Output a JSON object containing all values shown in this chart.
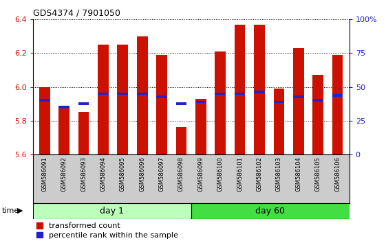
{
  "title": "GDS4374 / 7901050",
  "samples": [
    "GSM586091",
    "GSM586092",
    "GSM586093",
    "GSM586094",
    "GSM586095",
    "GSM586096",
    "GSM586097",
    "GSM586098",
    "GSM586099",
    "GSM586100",
    "GSM586101",
    "GSM586102",
    "GSM586103",
    "GSM586104",
    "GSM586105",
    "GSM586106"
  ],
  "red_values": [
    6.0,
    5.88,
    5.85,
    6.25,
    6.25,
    6.3,
    6.19,
    5.76,
    5.93,
    6.21,
    6.37,
    6.37,
    5.99,
    6.23,
    6.07,
    6.19
  ],
  "blue_values": [
    5.92,
    5.88,
    5.9,
    5.96,
    5.96,
    5.96,
    5.94,
    5.9,
    5.91,
    5.96,
    5.96,
    5.97,
    5.91,
    5.94,
    5.92,
    5.95
  ],
  "ymin": 5.6,
  "ymax": 6.4,
  "yticks": [
    5.6,
    5.8,
    6.0,
    6.2,
    6.4
  ],
  "right_ytick_labels": [
    "0",
    "25",
    "50",
    "75",
    "100%"
  ],
  "bar_color": "#cc1100",
  "blue_color": "#2222cc",
  "day1_color": "#bbffbb",
  "day60_color": "#44dd44",
  "day1_samples": 8,
  "day60_samples": 8,
  "bar_width": 0.55
}
